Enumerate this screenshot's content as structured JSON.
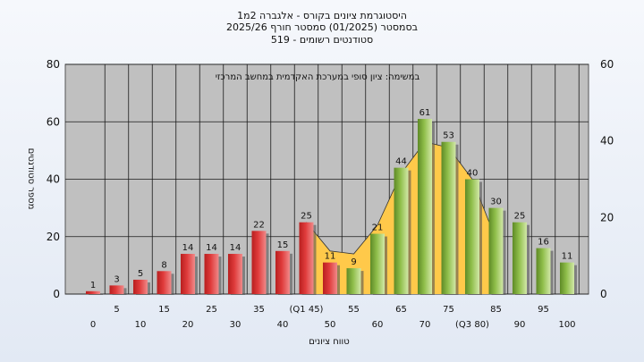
{
  "chart_data": {
    "type": "bar",
    "title_lines": [
      "היסטוגרמת ציונים בקורס - אלגברה 2מ1",
      "בסמסטר  (01/2025)  סמסטר חורף 2025/26",
      "519 - סטודנטים רשומים"
    ],
    "annotation": "במשימה: ציון סופי במערכת האקדמית במחשב המרכזי",
    "xlabel": "טווח ציונים",
    "ylabel": "מספר סטודנטים",
    "ylim": [
      0,
      80
    ],
    "yticks": [
      0,
      20,
      40,
      60,
      80
    ],
    "y2lim": [
      0,
      60
    ],
    "y2ticks": [
      0,
      20,
      40,
      60
    ],
    "grid": true,
    "categories": [
      "0",
      "5",
      "10",
      "15",
      "20",
      "25",
      "30",
      "35",
      "40",
      "(Q1 45)",
      "50",
      "55",
      "60",
      "65",
      "70",
      "75",
      "(Q3 80)",
      "85",
      "90",
      "95",
      "100"
    ],
    "values": [
      1,
      3,
      5,
      8,
      14,
      14,
      14,
      22,
      15,
      25,
      11,
      9,
      21,
      44,
      61,
      53,
      40,
      30,
      25,
      16,
      11
    ],
    "bar_colors": [
      "red",
      "red",
      "red",
      "red",
      "red",
      "red",
      "red",
      "red",
      "red",
      "red",
      "red",
      "green",
      "green",
      "green",
      "green",
      "green",
      "green",
      "green",
      "green",
      "green",
      "green"
    ],
    "area_start_index": 9,
    "area_values": [
      25,
      15,
      14,
      24,
      42,
      53,
      51,
      40,
      19
    ],
    "colors": {
      "red": "#e03c3c",
      "green": "#8fbe4a",
      "area": "#ffc94a",
      "plot_bg": "#c0c0c0"
    }
  }
}
